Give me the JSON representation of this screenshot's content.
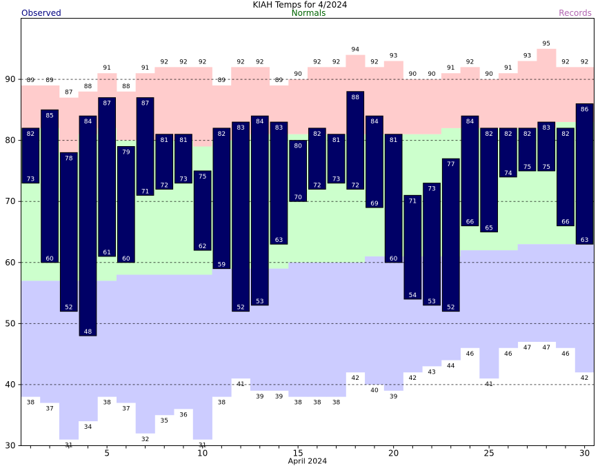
{
  "chart_data": {
    "type": "bar",
    "title": "KIAH Temps for 4/2024",
    "legend": {
      "observed": "Observed",
      "normals": "Normals",
      "records": "Records"
    },
    "xlabel": "April 2024",
    "x_ticks": [
      5,
      10,
      15,
      20,
      25,
      30
    ],
    "y_ticks": [
      30,
      40,
      50,
      60,
      70,
      80,
      90
    ],
    "ylim": [
      30,
      100
    ],
    "xlim": [
      0.5,
      30.5
    ],
    "grid": "dashed horizontal lines at 40, 50, 60, 70, 80, 90",
    "days": [
      1,
      2,
      3,
      4,
      5,
      6,
      7,
      8,
      9,
      10,
      11,
      12,
      13,
      14,
      15,
      16,
      17,
      18,
      19,
      20,
      21,
      22,
      23,
      24,
      25,
      26,
      27,
      28,
      29,
      30
    ],
    "observed_high": [
      82,
      85,
      78,
      84,
      87,
      79,
      87,
      81,
      81,
      75,
      82,
      83,
      84,
      83,
      80,
      82,
      81,
      88,
      84,
      81,
      71,
      73,
      77,
      84,
      82,
      82,
      82,
      83,
      82,
      86
    ],
    "observed_low": [
      73,
      60,
      52,
      48,
      61,
      60,
      71,
      72,
      73,
      62,
      59,
      52,
      53,
      63,
      70,
      72,
      73,
      72,
      69,
      60,
      54,
      53,
      52,
      66,
      65,
      74,
      75,
      75,
      66,
      63
    ],
    "record_high": [
      89,
      89,
      87,
      88,
      91,
      88,
      91,
      92,
      92,
      92,
      89,
      92,
      92,
      89,
      90,
      92,
      92,
      94,
      92,
      93,
      90,
      90,
      91,
      92,
      90,
      91,
      93,
      95,
      92,
      92
    ],
    "record_low": [
      38,
      37,
      31,
      34,
      38,
      37,
      32,
      35,
      36,
      31,
      38,
      41,
      39,
      39,
      38,
      38,
      38,
      42,
      40,
      39,
      42,
      43,
      44,
      46,
      41,
      46,
      47,
      47,
      46,
      42
    ],
    "normal_high": [
      82,
      82,
      78,
      81,
      82,
      80,
      80,
      80,
      80,
      79,
      80,
      80,
      81,
      81,
      81,
      81,
      81,
      81,
      81,
      81,
      81,
      81,
      82,
      82,
      82,
      82,
      82,
      82,
      83,
      83
    ],
    "normal_low": [
      57,
      57,
      57,
      57,
      57,
      58,
      58,
      58,
      58,
      58,
      59,
      59,
      59,
      59,
      60,
      60,
      60,
      60,
      61,
      61,
      61,
      61,
      61,
      62,
      62,
      62,
      63,
      63,
      63,
      63
    ],
    "colors": {
      "observed": "#000066",
      "record_band": "#ffcccc",
      "normal_band": "#ccffcc",
      "low_band": "#ccccff",
      "observed_title": "#000080",
      "normals_title": "#006400",
      "records_title": "#b266b2"
    }
  }
}
